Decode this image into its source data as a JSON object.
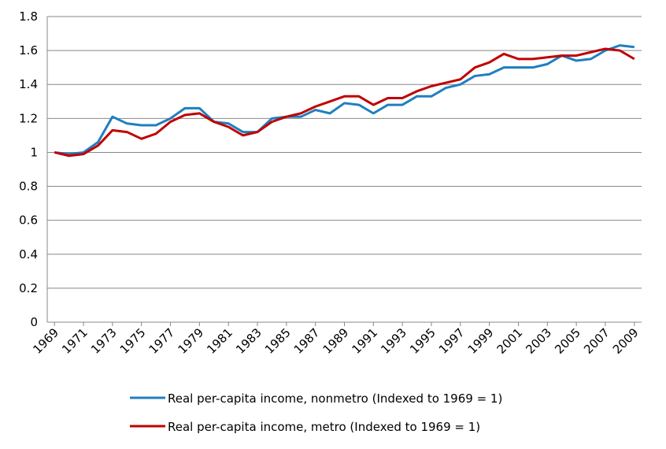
{
  "chart_data": {
    "type": "line",
    "x": [
      1969,
      1970,
      1971,
      1972,
      1973,
      1974,
      1975,
      1976,
      1977,
      1978,
      1979,
      1980,
      1981,
      1982,
      1983,
      1984,
      1985,
      1986,
      1987,
      1988,
      1989,
      1990,
      1991,
      1992,
      1993,
      1994,
      1995,
      1996,
      1997,
      1998,
      1999,
      2000,
      2001,
      2002,
      2003,
      2004,
      2005,
      2006,
      2007,
      2008,
      2009
    ],
    "xlim": [
      1968.5,
      2009.5
    ],
    "xticks": [
      1969,
      1971,
      1973,
      1975,
      1977,
      1979,
      1981,
      1983,
      1985,
      1987,
      1989,
      1991,
      1993,
      1995,
      1997,
      1999,
      2001,
      2003,
      2005,
      2007,
      2009
    ],
    "ylim": [
      0,
      1.8
    ],
    "yticks": [
      0,
      0.2,
      0.4,
      0.6,
      0.8,
      1,
      1.2,
      1.4,
      1.6,
      1.8
    ],
    "grid": true,
    "legend": "bottom",
    "series": [
      {
        "name": "Real per-capita income, nonmetro (Indexed to 1969 = 1)",
        "color": "#1f7fc0",
        "values": [
          1.0,
          0.99,
          1.0,
          1.06,
          1.21,
          1.17,
          1.16,
          1.16,
          1.2,
          1.26,
          1.26,
          1.18,
          1.17,
          1.12,
          1.12,
          1.2,
          1.21,
          1.21,
          1.25,
          1.23,
          1.29,
          1.28,
          1.23,
          1.28,
          1.28,
          1.33,
          1.33,
          1.38,
          1.4,
          1.45,
          1.46,
          1.5,
          1.5,
          1.5,
          1.52,
          1.57,
          1.54,
          1.55,
          1.6,
          1.63,
          1.62
        ]
      },
      {
        "name": "Real per-capita income, metro (Indexed to 1969 = 1)",
        "color": "#c00000",
        "values": [
          1.0,
          0.98,
          0.99,
          1.04,
          1.13,
          1.12,
          1.08,
          1.11,
          1.18,
          1.22,
          1.23,
          1.18,
          1.15,
          1.1,
          1.12,
          1.18,
          1.21,
          1.23,
          1.27,
          1.3,
          1.33,
          1.33,
          1.28,
          1.32,
          1.32,
          1.36,
          1.39,
          1.41,
          1.43,
          1.5,
          1.53,
          1.58,
          1.55,
          1.55,
          1.56,
          1.57,
          1.57,
          1.59,
          1.61,
          1.6,
          1.55
        ]
      }
    ]
  }
}
